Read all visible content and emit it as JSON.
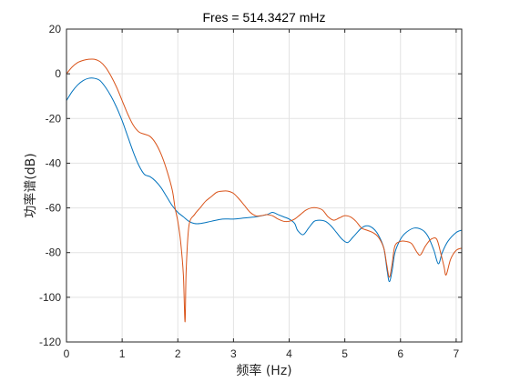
{
  "chart_data": {
    "type": "line",
    "title": "Fres = 514.3427 mHz",
    "xlabel": "频率 (Hz)",
    "ylabel": "功率谱(dB)",
    "xlim": [
      0,
      7.1
    ],
    "ylim": [
      -120,
      20
    ],
    "xticks": [
      0,
      1,
      2,
      3,
      4,
      5,
      6,
      7
    ],
    "yticks": [
      -120,
      -100,
      -80,
      -60,
      -40,
      -20,
      0,
      20
    ],
    "xtick_labels": [
      "0",
      "1",
      "2",
      "3",
      "4",
      "5",
      "6",
      "7"
    ],
    "ytick_labels": [
      "-120",
      "-100",
      "-80",
      "-60",
      "-40",
      "-20",
      "0",
      "20"
    ],
    "grid": true,
    "series": [
      {
        "color": "#0072BD",
        "points": [
          [
            0.0,
            -12
          ],
          [
            0.1,
            -8
          ],
          [
            0.2,
            -5
          ],
          [
            0.3,
            -3
          ],
          [
            0.4,
            -2
          ],
          [
            0.5,
            -2
          ],
          [
            0.6,
            -3
          ],
          [
            0.7,
            -6
          ],
          [
            0.8,
            -10
          ],
          [
            0.9,
            -15
          ],
          [
            1.0,
            -21
          ],
          [
            1.1,
            -28
          ],
          [
            1.2,
            -35
          ],
          [
            1.3,
            -41
          ],
          [
            1.4,
            -45
          ],
          [
            1.5,
            -46
          ],
          [
            1.6,
            -48
          ],
          [
            1.7,
            -51
          ],
          [
            1.8,
            -55
          ],
          [
            1.9,
            -59
          ],
          [
            2.0,
            -62
          ],
          [
            2.1,
            -64
          ],
          [
            2.2,
            -66
          ],
          [
            2.3,
            -67
          ],
          [
            2.4,
            -67
          ],
          [
            2.6,
            -66
          ],
          [
            2.8,
            -65
          ],
          [
            3.0,
            -65
          ],
          [
            3.2,
            -64.5
          ],
          [
            3.4,
            -64
          ],
          [
            3.6,
            -63
          ],
          [
            3.7,
            -62
          ],
          [
            3.8,
            -63
          ],
          [
            3.9,
            -64
          ],
          [
            4.0,
            -65
          ],
          [
            4.1,
            -67
          ],
          [
            4.15,
            -70
          ],
          [
            4.25,
            -72
          ],
          [
            4.35,
            -69
          ],
          [
            4.45,
            -66
          ],
          [
            4.55,
            -65.5
          ],
          [
            4.65,
            -66
          ],
          [
            4.75,
            -68
          ],
          [
            4.85,
            -71
          ],
          [
            4.95,
            -74
          ],
          [
            5.05,
            -75.5
          ],
          [
            5.15,
            -73
          ],
          [
            5.3,
            -69
          ],
          [
            5.4,
            -68
          ],
          [
            5.5,
            -69
          ],
          [
            5.6,
            -72
          ],
          [
            5.7,
            -78
          ],
          [
            5.76,
            -88
          ],
          [
            5.8,
            -93
          ],
          [
            5.85,
            -88
          ],
          [
            5.9,
            -80
          ],
          [
            6.0,
            -74
          ],
          [
            6.1,
            -71
          ],
          [
            6.25,
            -69
          ],
          [
            6.4,
            -70
          ],
          [
            6.5,
            -73
          ],
          [
            6.6,
            -79
          ],
          [
            6.68,
            -85
          ],
          [
            6.75,
            -80
          ],
          [
            6.85,
            -75
          ],
          [
            7.0,
            -71
          ],
          [
            7.1,
            -70
          ]
        ]
      },
      {
        "color": "#D95319",
        "points": [
          [
            0.0,
            0
          ],
          [
            0.1,
            3
          ],
          [
            0.2,
            5
          ],
          [
            0.3,
            6
          ],
          [
            0.4,
            6.5
          ],
          [
            0.5,
            6.5
          ],
          [
            0.6,
            5.5
          ],
          [
            0.7,
            3
          ],
          [
            0.8,
            -1
          ],
          [
            0.9,
            -6
          ],
          [
            1.0,
            -12
          ],
          [
            1.1,
            -18
          ],
          [
            1.2,
            -23
          ],
          [
            1.3,
            -26
          ],
          [
            1.4,
            -27
          ],
          [
            1.5,
            -28
          ],
          [
            1.6,
            -31
          ],
          [
            1.7,
            -36
          ],
          [
            1.8,
            -43
          ],
          [
            1.9,
            -52
          ],
          [
            1.95,
            -60
          ],
          [
            2.0,
            -66
          ],
          [
            2.05,
            -75
          ],
          [
            2.1,
            -90
          ],
          [
            2.13,
            -111
          ],
          [
            2.15,
            -88
          ],
          [
            2.2,
            -68
          ],
          [
            2.3,
            -63
          ],
          [
            2.4,
            -60
          ],
          [
            2.5,
            -57
          ],
          [
            2.6,
            -55
          ],
          [
            2.7,
            -53
          ],
          [
            2.8,
            -52.5
          ],
          [
            2.9,
            -52.5
          ],
          [
            3.0,
            -53.5
          ],
          [
            3.1,
            -56
          ],
          [
            3.2,
            -59
          ],
          [
            3.3,
            -62
          ],
          [
            3.4,
            -63.5
          ],
          [
            3.5,
            -63.5
          ],
          [
            3.6,
            -63
          ],
          [
            3.7,
            -63.5
          ],
          [
            3.8,
            -65
          ],
          [
            3.9,
            -66
          ],
          [
            4.0,
            -66
          ],
          [
            4.1,
            -65
          ],
          [
            4.2,
            -63
          ],
          [
            4.3,
            -61
          ],
          [
            4.4,
            -60
          ],
          [
            4.5,
            -60
          ],
          [
            4.6,
            -61
          ],
          [
            4.7,
            -64
          ],
          [
            4.8,
            -65.5
          ],
          [
            4.9,
            -64.5
          ],
          [
            5.0,
            -63.5
          ],
          [
            5.1,
            -64
          ],
          [
            5.2,
            -66
          ],
          [
            5.3,
            -69
          ],
          [
            5.4,
            -70
          ],
          [
            5.5,
            -71
          ],
          [
            5.6,
            -73
          ],
          [
            5.7,
            -78
          ],
          [
            5.75,
            -85
          ],
          [
            5.8,
            -91
          ],
          [
            5.85,
            -85
          ],
          [
            5.9,
            -77
          ],
          [
            6.0,
            -75
          ],
          [
            6.1,
            -75
          ],
          [
            6.2,
            -76
          ],
          [
            6.3,
            -80
          ],
          [
            6.36,
            -81
          ],
          [
            6.45,
            -77
          ],
          [
            6.55,
            -74
          ],
          [
            6.65,
            -74
          ],
          [
            6.72,
            -80
          ],
          [
            6.78,
            -86
          ],
          [
            6.82,
            -90
          ],
          [
            6.9,
            -83
          ],
          [
            7.0,
            -79
          ],
          [
            7.1,
            -78
          ]
        ]
      }
    ]
  }
}
